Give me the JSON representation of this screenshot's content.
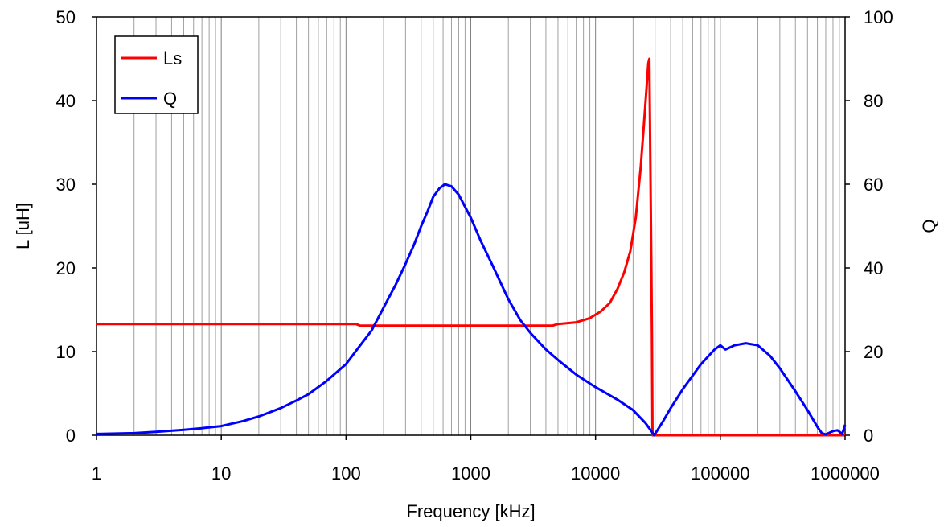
{
  "chart_data": {
    "type": "line",
    "xlabel": "Frequency [kHz]",
    "ylabel": "L [uH]",
    "y2label": "Q",
    "xscale": "log",
    "xlim": [
      1,
      1000000
    ],
    "ylim": [
      0,
      50
    ],
    "y2lim": [
      0,
      100
    ],
    "x_ticks": [
      1,
      10,
      100,
      1000,
      10000,
      100000,
      1000000
    ],
    "x_tick_labels": [
      "1",
      "10",
      "100",
      "1000",
      "10000",
      "100000",
      "1000000"
    ],
    "y_ticks": [
      0,
      10,
      20,
      30,
      40,
      50
    ],
    "y_tick_labels": [
      "0",
      "10",
      "20",
      "30",
      "40",
      "50"
    ],
    "y2_ticks": [
      0,
      20,
      40,
      60,
      80,
      100
    ],
    "y2_tick_labels": [
      "0",
      "20",
      "40",
      "60",
      "80",
      "100"
    ],
    "grid": {
      "vertical_minor": true,
      "horizontal": false
    },
    "legend": {
      "position": "top-left"
    },
    "series": [
      {
        "name": "Ls",
        "axis": "left",
        "color": "#ff0000",
        "points": [
          [
            1,
            13.3
          ],
          [
            10,
            13.3
          ],
          [
            100,
            13.3
          ],
          [
            120,
            13.3
          ],
          [
            130,
            13.1
          ],
          [
            1000,
            13.1
          ],
          [
            4500,
            13.1
          ],
          [
            5000,
            13.3
          ],
          [
            7000,
            13.5
          ],
          [
            9000,
            14.0
          ],
          [
            11000,
            14.8
          ],
          [
            13000,
            15.8
          ],
          [
            15000,
            17.5
          ],
          [
            17000,
            19.5
          ],
          [
            19000,
            22.0
          ],
          [
            21000,
            26.0
          ],
          [
            23000,
            32.0
          ],
          [
            24500,
            37.5
          ],
          [
            25500,
            41.0
          ],
          [
            26500,
            44.5
          ],
          [
            27000,
            45.0
          ],
          [
            27500,
            33.0
          ],
          [
            28000,
            20.0
          ],
          [
            28300,
            12.0
          ],
          [
            28600,
            0.0
          ],
          [
            300000,
            0.0
          ],
          [
            1000000,
            0.0
          ]
        ]
      },
      {
        "name": "Q",
        "axis": "right",
        "color": "#0000ff",
        "points": [
          [
            1,
            0.3
          ],
          [
            2,
            0.5
          ],
          [
            3,
            0.8
          ],
          [
            5,
            1.3
          ],
          [
            7,
            1.7
          ],
          [
            10,
            2.2
          ],
          [
            15,
            3.4
          ],
          [
            20,
            4.5
          ],
          [
            30,
            6.5
          ],
          [
            40,
            8.3
          ],
          [
            50,
            9.8
          ],
          [
            70,
            13.0
          ],
          [
            100,
            17.0
          ],
          [
            130,
            21.5
          ],
          [
            160,
            25.0
          ],
          [
            200,
            30.5
          ],
          [
            250,
            36.0
          ],
          [
            300,
            41.0
          ],
          [
            350,
            45.5
          ],
          [
            400,
            50.0
          ],
          [
            450,
            53.5
          ],
          [
            500,
            57.0
          ],
          [
            560,
            59.0
          ],
          [
            620,
            60.0
          ],
          [
            700,
            59.5
          ],
          [
            800,
            57.5
          ],
          [
            1000,
            52.0
          ],
          [
            1200,
            46.5
          ],
          [
            1500,
            40.5
          ],
          [
            2000,
            32.5
          ],
          [
            2500,
            27.5
          ],
          [
            3000,
            24.5
          ],
          [
            4000,
            20.5
          ],
          [
            5000,
            18.0
          ],
          [
            7000,
            14.5
          ],
          [
            10000,
            11.5
          ],
          [
            15000,
            8.5
          ],
          [
            20000,
            6.0
          ],
          [
            25000,
            3.0
          ],
          [
            28000,
            1.0
          ],
          [
            29500,
            0.0
          ],
          [
            31000,
            1.0
          ],
          [
            35000,
            3.5
          ],
          [
            40000,
            6.5
          ],
          [
            50000,
            11.0
          ],
          [
            70000,
            17.0
          ],
          [
            90000,
            20.5
          ],
          [
            100000,
            21.5
          ],
          [
            110000,
            20.5
          ],
          [
            130000,
            21.5
          ],
          [
            160000,
            22.0
          ],
          [
            200000,
            21.5
          ],
          [
            250000,
            19.0
          ],
          [
            300000,
            16.0
          ],
          [
            400000,
            10.5
          ],
          [
            500000,
            6.0
          ],
          [
            600000,
            2.0
          ],
          [
            650000,
            0.5
          ],
          [
            700000,
            0.2
          ],
          [
            800000,
            1.0
          ],
          [
            870000,
            1.2
          ],
          [
            950000,
            0.3
          ],
          [
            1000000,
            2.5
          ]
        ]
      }
    ]
  }
}
